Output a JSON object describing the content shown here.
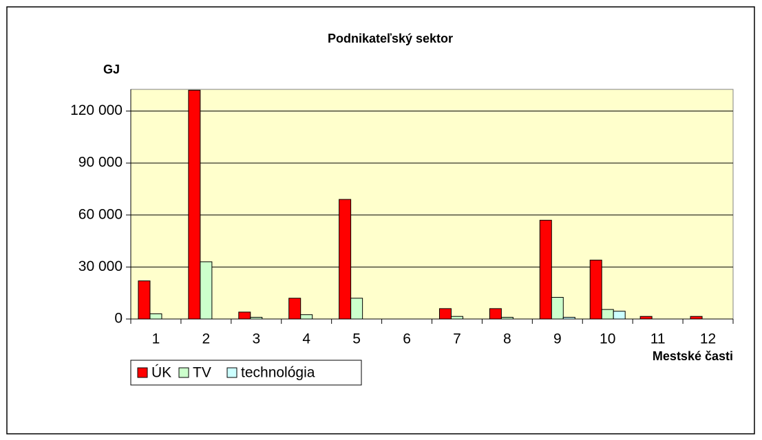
{
  "chart_data": {
    "type": "bar",
    "title": "Podnikateľský sektor",
    "y_label": "GJ",
    "x_label": "Mestské časti",
    "categories": [
      "1",
      "2",
      "3",
      "4",
      "5",
      "6",
      "7",
      "8",
      "9",
      "10",
      "11",
      "12"
    ],
    "series": [
      {
        "name": "ÚK",
        "color": "#ff0000",
        "values": [
          22000,
          132000,
          4000,
          12000,
          69000,
          0,
          6000,
          6000,
          57000,
          34000,
          1500,
          1500
        ]
      },
      {
        "name": "TV",
        "color": "#ccffcc",
        "values": [
          3000,
          33000,
          1000,
          2500,
          12000,
          0,
          1500,
          1000,
          12500,
          5500,
          0,
          0
        ]
      },
      {
        "name": "technológia",
        "color": "#ccffff",
        "values": [
          0,
          0,
          0,
          0,
          0,
          0,
          0,
          0,
          1000,
          4500,
          0,
          0
        ]
      }
    ],
    "ylim": [
      0,
      132500
    ],
    "yticks": [
      {
        "value": 0,
        "label": "0"
      },
      {
        "value": 30000,
        "label": "30 000"
      },
      {
        "value": 60000,
        "label": "60 000"
      },
      {
        "value": 90000,
        "label": "90 000"
      },
      {
        "value": 120000,
        "label": "120 000"
      }
    ],
    "grid": true,
    "plot_background": "#ffffcc",
    "legend": "bottom-left"
  }
}
